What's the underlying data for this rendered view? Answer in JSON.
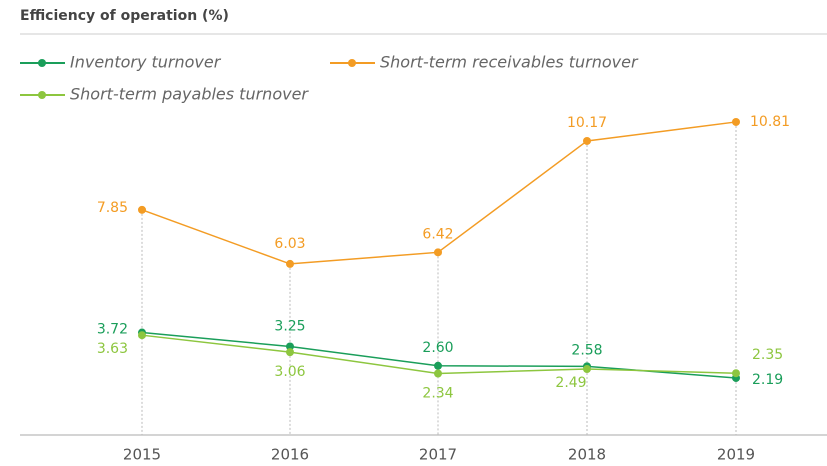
{
  "chart_data": {
    "type": "line",
    "title": "Efficiency of operation (%)",
    "categories": [
      "2015",
      "2016",
      "2017",
      "2018",
      "2019"
    ],
    "series": [
      {
        "name": "Inventory turnover",
        "color": "#1a9e5a",
        "values": [
          3.72,
          3.25,
          2.6,
          2.58,
          2.19
        ],
        "value_labels": [
          "3.72",
          "3.25",
          "2.60",
          "2.58",
          "2.19"
        ]
      },
      {
        "name": "Short-term receivables turnover",
        "color": "#f39c24",
        "values": [
          7.85,
          6.03,
          6.42,
          10.17,
          10.81
        ],
        "value_labels": [
          "7.85",
          "6.03",
          "6.42",
          "10.17",
          "10.81"
        ]
      },
      {
        "name": "Short-term payables turnover",
        "color": "#8dc63f",
        "values": [
          3.63,
          3.06,
          2.34,
          2.49,
          2.35
        ],
        "value_labels": [
          "3.63",
          "3.06",
          "2.34",
          "2.49",
          "2.35"
        ]
      }
    ]
  }
}
